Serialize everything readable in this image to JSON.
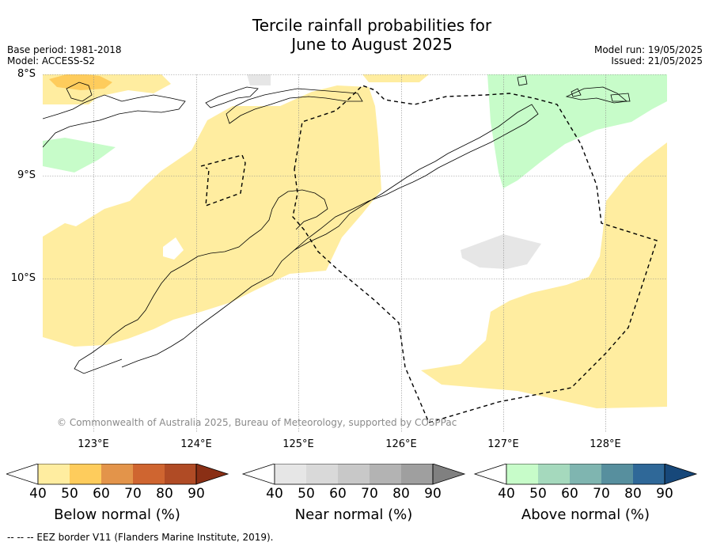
{
  "title_line1": "Tercile rainfall probabilities for",
  "title_line2": "June to August 2025",
  "base_period": "Base period: 1981-2018",
  "model": "Model: ACCESS-S2",
  "model_run": "Model run: 19/05/2025",
  "issued": "Issued: 21/05/2025",
  "latitude_labels": [
    "8°S",
    "9°S",
    "10°S"
  ],
  "longitude_labels": [
    "123°E",
    "124°E",
    "125°E",
    "126°E",
    "127°E",
    "128°E"
  ],
  "copyright": "© Commonwealth of Australia 2025, Bureau of Meteorology, supported by COSPPac",
  "colorbars": [
    {
      "label": "Below normal (%)",
      "ticks": [
        "40",
        "50",
        "60",
        "70",
        "80",
        "90"
      ],
      "colors": [
        "#ffffff",
        "#ffeda0",
        "#fecc5c",
        "#e3944a",
        "#cf6530",
        "#b04b25",
        "#8a2f15"
      ]
    },
    {
      "label": "Near normal (%)",
      "ticks": [
        "40",
        "50",
        "60",
        "70",
        "80",
        "90"
      ],
      "colors": [
        "#ffffff",
        "#e6e6e6",
        "#d9d9d9",
        "#c8c8c8",
        "#b3b3b3",
        "#9f9f9f",
        "#808080"
      ]
    },
    {
      "label": "Above normal (%)",
      "ticks": [
        "40",
        "50",
        "60",
        "70",
        "80",
        "90"
      ],
      "colors": [
        "#ffffff",
        "#c7fcc9",
        "#a5d9bd",
        "#7fb5b0",
        "#578f9e",
        "#2f6898",
        "#17487a"
      ]
    }
  ],
  "footer": "--  --  -- EEZ border V11 (Flanders Marine Institute, 2019)."
}
